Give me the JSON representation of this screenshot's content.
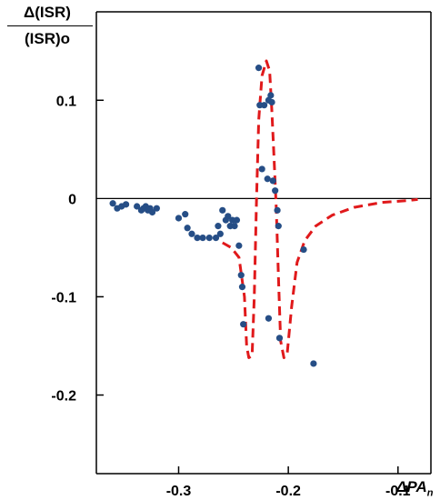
{
  "chart_data": {
    "type": "scatter",
    "ylabel_numerator": "Δ(ISR)",
    "ylabel_denominator": "(ISR)o",
    "xlabel_symbol": "ΔPA",
    "xlabel_subscript": "n",
    "xlim": [
      -0.375,
      -0.07
    ],
    "ylim": [
      -0.28,
      0.19
    ],
    "x_ticks": [
      -0.3,
      -0.2,
      -0.1
    ],
    "x_tick_labels": [
      "-0.3",
      "-0.2",
      "-0.1"
    ],
    "y_ticks": [
      0.1,
      0,
      -0.1,
      -0.2
    ],
    "y_tick_labels": [
      "0.1",
      "0",
      "-0.1",
      "-0.2"
    ],
    "zero_line": 0,
    "grid": false,
    "colors": {
      "points": "#264e86",
      "curve": "#e0191b",
      "axes": "#000000"
    },
    "series": [
      {
        "type": "scatter",
        "points": [
          [
            -0.36,
            -0.005
          ],
          [
            -0.356,
            -0.01
          ],
          [
            -0.352,
            -0.008
          ],
          [
            -0.348,
            -0.006
          ],
          [
            -0.338,
            -0.008
          ],
          [
            -0.334,
            -0.012
          ],
          [
            -0.332,
            -0.01
          ],
          [
            -0.33,
            -0.008
          ],
          [
            -0.328,
            -0.012
          ],
          [
            -0.326,
            -0.01
          ],
          [
            -0.324,
            -0.014
          ],
          [
            -0.32,
            -0.01
          ],
          [
            -0.3,
            -0.02
          ],
          [
            -0.294,
            -0.016
          ],
          [
            -0.292,
            -0.03
          ],
          [
            -0.288,
            -0.036
          ],
          [
            -0.283,
            -0.04
          ],
          [
            -0.278,
            -0.04
          ],
          [
            -0.272,
            -0.04
          ],
          [
            -0.266,
            -0.04
          ],
          [
            -0.264,
            -0.028
          ],
          [
            -0.262,
            -0.036
          ],
          [
            -0.26,
            -0.012
          ],
          [
            -0.257,
            -0.022
          ],
          [
            -0.255,
            -0.018
          ],
          [
            -0.253,
            -0.028
          ],
          [
            -0.251,
            -0.022
          ],
          [
            -0.249,
            -0.028
          ],
          [
            -0.247,
            -0.022
          ],
          [
            -0.245,
            -0.048
          ],
          [
            -0.243,
            -0.078
          ],
          [
            -0.242,
            -0.09
          ],
          [
            -0.241,
            -0.128
          ],
          [
            -0.227,
            0.133
          ],
          [
            -0.226,
            0.095
          ],
          [
            -0.224,
            0.03
          ],
          [
            -0.222,
            0.095
          ],
          [
            -0.219,
            0.02
          ],
          [
            -0.218,
            0.1
          ],
          [
            -0.216,
            0.105
          ],
          [
            -0.215,
            0.098
          ],
          [
            -0.214,
            0.018
          ],
          [
            -0.212,
            0.008
          ],
          [
            -0.21,
            -0.012
          ],
          [
            -0.209,
            -0.028
          ],
          [
            -0.208,
            -0.142
          ],
          [
            -0.218,
            -0.122
          ],
          [
            -0.186,
            -0.052
          ],
          [
            -0.177,
            -0.168
          ]
        ]
      },
      {
        "type": "line",
        "style": "dashed",
        "points": [
          [
            -0.26,
            -0.045
          ],
          [
            -0.252,
            -0.05
          ],
          [
            -0.245,
            -0.06
          ],
          [
            -0.24,
            -0.1
          ],
          [
            -0.238,
            -0.15
          ],
          [
            -0.236,
            -0.162
          ],
          [
            -0.233,
            -0.16
          ],
          [
            -0.231,
            -0.1
          ],
          [
            -0.229,
            0.0
          ],
          [
            -0.227,
            0.08
          ],
          [
            -0.224,
            0.125
          ],
          [
            -0.22,
            0.14
          ],
          [
            -0.217,
            0.13
          ],
          [
            -0.215,
            0.09
          ],
          [
            -0.213,
            0.04
          ],
          [
            -0.211,
            -0.01
          ],
          [
            -0.209,
            -0.08
          ],
          [
            -0.207,
            -0.145
          ],
          [
            -0.204,
            -0.162
          ],
          [
            -0.201,
            -0.158
          ],
          [
            -0.197,
            -0.11
          ],
          [
            -0.192,
            -0.065
          ],
          [
            -0.185,
            -0.043
          ],
          [
            -0.175,
            -0.028
          ],
          [
            -0.16,
            -0.017
          ],
          [
            -0.14,
            -0.009
          ],
          [
            -0.115,
            -0.004
          ],
          [
            -0.09,
            -0.002
          ],
          [
            -0.082,
            -0.001
          ]
        ]
      }
    ]
  }
}
